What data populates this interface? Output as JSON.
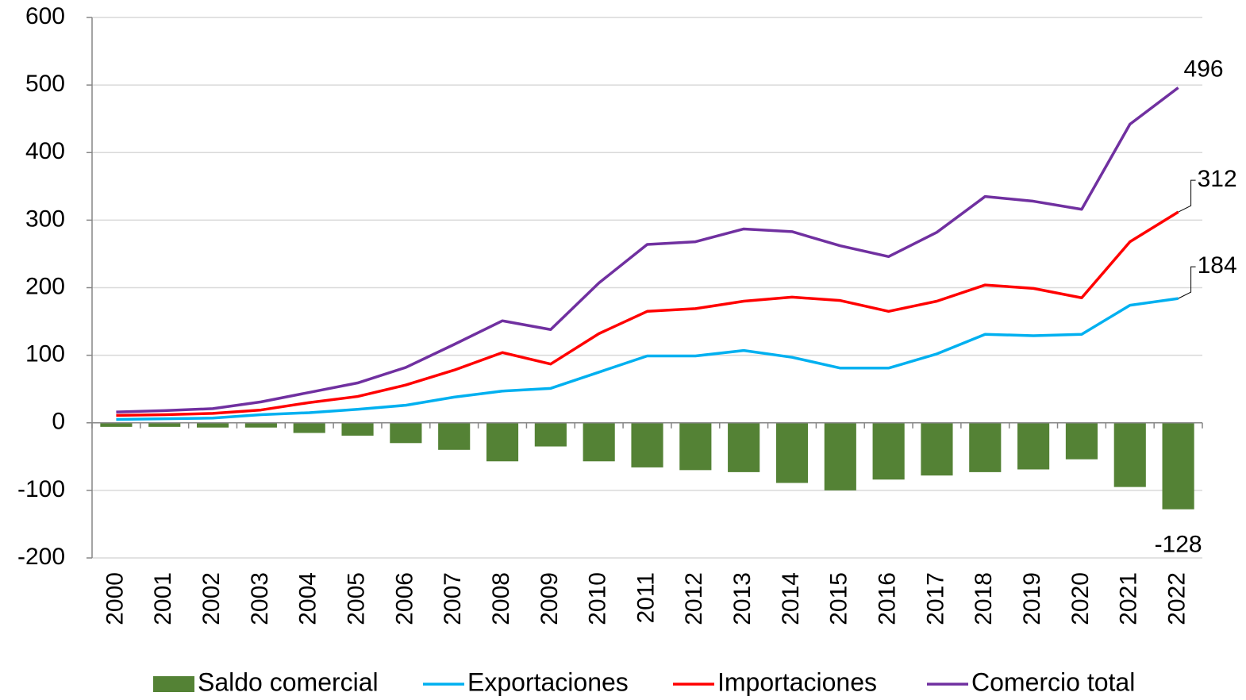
{
  "chart_data": {
    "type": "combo",
    "categories": [
      "2000",
      "2001",
      "2002",
      "2003",
      "2004",
      "2005",
      "2006",
      "2007",
      "2008",
      "2009",
      "2010",
      "2011",
      "2012",
      "2013",
      "2014",
      "2015",
      "2016",
      "2017",
      "2018",
      "2019",
      "2020",
      "2021",
      "2022"
    ],
    "series": [
      {
        "name": "Saldo comercial",
        "type": "bar",
        "color": "#548235",
        "values": [
          -6,
          -6,
          -7,
          -7,
          -15,
          -19,
          -30,
          -40,
          -57,
          -35,
          -57,
          -66,
          -70,
          -73,
          -89,
          -100,
          -84,
          -78,
          -73,
          -69,
          -54,
          -95,
          -128
        ]
      },
      {
        "name": "Exportaciones",
        "type": "line",
        "color": "#00b0f0",
        "values": [
          5,
          6,
          7,
          12,
          15,
          20,
          26,
          38,
          47,
          51,
          75,
          99,
          99,
          107,
          97,
          81,
          81,
          102,
          131,
          129,
          131,
          174,
          184
        ]
      },
      {
        "name": "Importaciones",
        "type": "line",
        "color": "#ff0000",
        "values": [
          11,
          12,
          14,
          19,
          30,
          39,
          56,
          78,
          104,
          87,
          132,
          165,
          169,
          180,
          186,
          181,
          165,
          180,
          204,
          199,
          185,
          268,
          312
        ]
      },
      {
        "name": "Comercio total",
        "type": "line",
        "color": "#7030a0",
        "values": [
          16,
          18,
          21,
          31,
          45,
          59,
          82,
          116,
          151,
          138,
          207,
          264,
          268,
          287,
          283,
          262,
          246,
          282,
          335,
          328,
          316,
          442,
          496
        ]
      }
    ],
    "ylim": [
      -200,
      600
    ],
    "yticks": [
      -200,
      -100,
      0,
      100,
      200,
      300,
      400,
      500,
      600
    ],
    "grid": true,
    "legend": "bottom"
  }
}
